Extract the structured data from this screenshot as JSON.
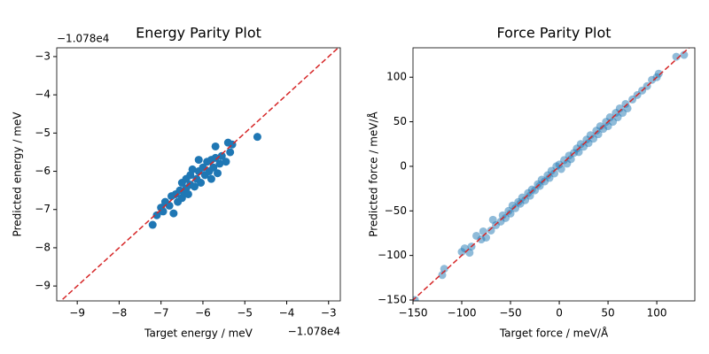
{
  "chart_data": [
    {
      "type": "scatter",
      "title": "Energy Parity Plot",
      "x_label": "Target energy / meV",
      "y_label": "Predicted energy / meV",
      "x_offset_label": "−1.078e4",
      "y_offset_label": "−1.078e4",
      "color": "#1f77b4",
      "opacity": 1,
      "identity_line": {
        "color": "#d62728",
        "style": "dashed"
      },
      "xlim": [
        -9.49,
        -2.72
      ],
      "ylim": [
        -9.39,
        -2.77
      ],
      "xticks": [
        {
          "value": -9,
          "label": "−9"
        },
        {
          "value": -8,
          "label": "−8"
        },
        {
          "value": -7,
          "label": "−7"
        },
        {
          "value": -6,
          "label": "−6"
        },
        {
          "value": -5,
          "label": "−5"
        },
        {
          "value": -4,
          "label": "−4"
        },
        {
          "value": -3,
          "label": "−3"
        }
      ],
      "yticks": [
        {
          "value": -9,
          "label": "−9"
        },
        {
          "value": -8,
          "label": "−8"
        },
        {
          "value": -7,
          "label": "−7"
        },
        {
          "value": -6,
          "label": "−6"
        },
        {
          "value": -5,
          "label": "−5"
        },
        {
          "value": -4,
          "label": "−4"
        },
        {
          "value": -3,
          "label": "−3"
        }
      ],
      "x": [
        -7.2,
        -7.1,
        -7.0,
        -6.95,
        -6.9,
        -6.8,
        -6.75,
        -6.7,
        -6.65,
        -6.6,
        -6.55,
        -6.5,
        -6.5,
        -6.45,
        -6.4,
        -6.4,
        -6.35,
        -6.3,
        -6.3,
        -6.25,
        -6.2,
        -6.15,
        -6.1,
        -6.1,
        -6.05,
        -6.0,
        -5.95,
        -5.9,
        -5.85,
        -5.8,
        -5.8,
        -5.75,
        -5.7,
        -5.7,
        -5.65,
        -5.6,
        -5.55,
        -5.45,
        -5.4,
        -5.35,
        -5.3,
        -4.7
      ],
      "y": [
        -7.4,
        -7.15,
        -6.95,
        -7.05,
        -6.8,
        -6.9,
        -6.65,
        -7.1,
        -6.6,
        -6.8,
        -6.5,
        -6.3,
        -6.7,
        -6.55,
        -6.2,
        -6.45,
        -6.6,
        -6.1,
        -6.35,
        -5.95,
        -6.4,
        -6.2,
        -5.7,
        -6.0,
        -6.3,
        -5.9,
        -6.1,
        -5.75,
        -6.0,
        -6.2,
        -5.7,
        -5.9,
        -5.35,
        -5.65,
        -6.05,
        -5.8,
        -5.6,
        -5.75,
        -5.25,
        -5.5,
        -5.3,
        -5.1
      ]
    },
    {
      "type": "scatter",
      "title": "Force Parity Plot",
      "x_label": "Target force / meV/Å",
      "y_label": "Predicted force / meV/Å",
      "color": "#1f77b4",
      "opacity": 0.5,
      "identity_line": {
        "color": "#d62728",
        "style": "dashed"
      },
      "xlim": [
        -150,
        139
      ],
      "ylim": [
        -151,
        133
      ],
      "xticks": [
        {
          "value": -150,
          "label": "−150"
        },
        {
          "value": -100,
          "label": "−100"
        },
        {
          "value": -50,
          "label": "−50"
        },
        0,
        50,
        100
      ],
      "yticks": [
        {
          "value": -150,
          "label": "−150"
        },
        {
          "value": -100,
          "label": "−100"
        },
        {
          "value": -50,
          "label": "−50"
        },
        0,
        50,
        100
      ],
      "x": [
        -148,
        -120,
        -118,
        -100,
        -97,
        -92,
        -90,
        -85,
        -80,
        -78,
        -75,
        -70,
        -68,
        -65,
        -60,
        -58,
        -55,
        -52,
        -50,
        -48,
        -45,
        -42,
        -40,
        -38,
        -35,
        -32,
        -30,
        -28,
        -25,
        -22,
        -20,
        -18,
        -15,
        -12,
        -10,
        -8,
        -5,
        -3,
        0,
        2,
        5,
        8,
        10,
        12,
        15,
        18,
        20,
        22,
        25,
        28,
        30,
        32,
        35,
        38,
        40,
        42,
        45,
        48,
        50,
        52,
        55,
        58,
        60,
        62,
        65,
        68,
        70,
        75,
        80,
        85,
        90,
        95,
        100,
        102,
        120,
        128
      ],
      "y": [
        -150,
        -122,
        -115,
        -96,
        -92,
        -97,
        -90,
        -78,
        -82,
        -73,
        -80,
        -72,
        -60,
        -66,
        -62,
        -55,
        -58,
        -50,
        -53,
        -44,
        -47,
        -40,
        -42,
        -35,
        -38,
        -30,
        -33,
        -26,
        -27,
        -20,
        -22,
        -15,
        -17,
        -10,
        -13,
        -5,
        -8,
        0,
        2,
        -3,
        7,
        3,
        12,
        8,
        15,
        20,
        16,
        25,
        22,
        30,
        26,
        35,
        31,
        40,
        36,
        45,
        42,
        50,
        45,
        55,
        50,
        60,
        55,
        65,
        60,
        70,
        65,
        75,
        80,
        85,
        90,
        97,
        100,
        104,
        123,
        125
      ]
    }
  ]
}
